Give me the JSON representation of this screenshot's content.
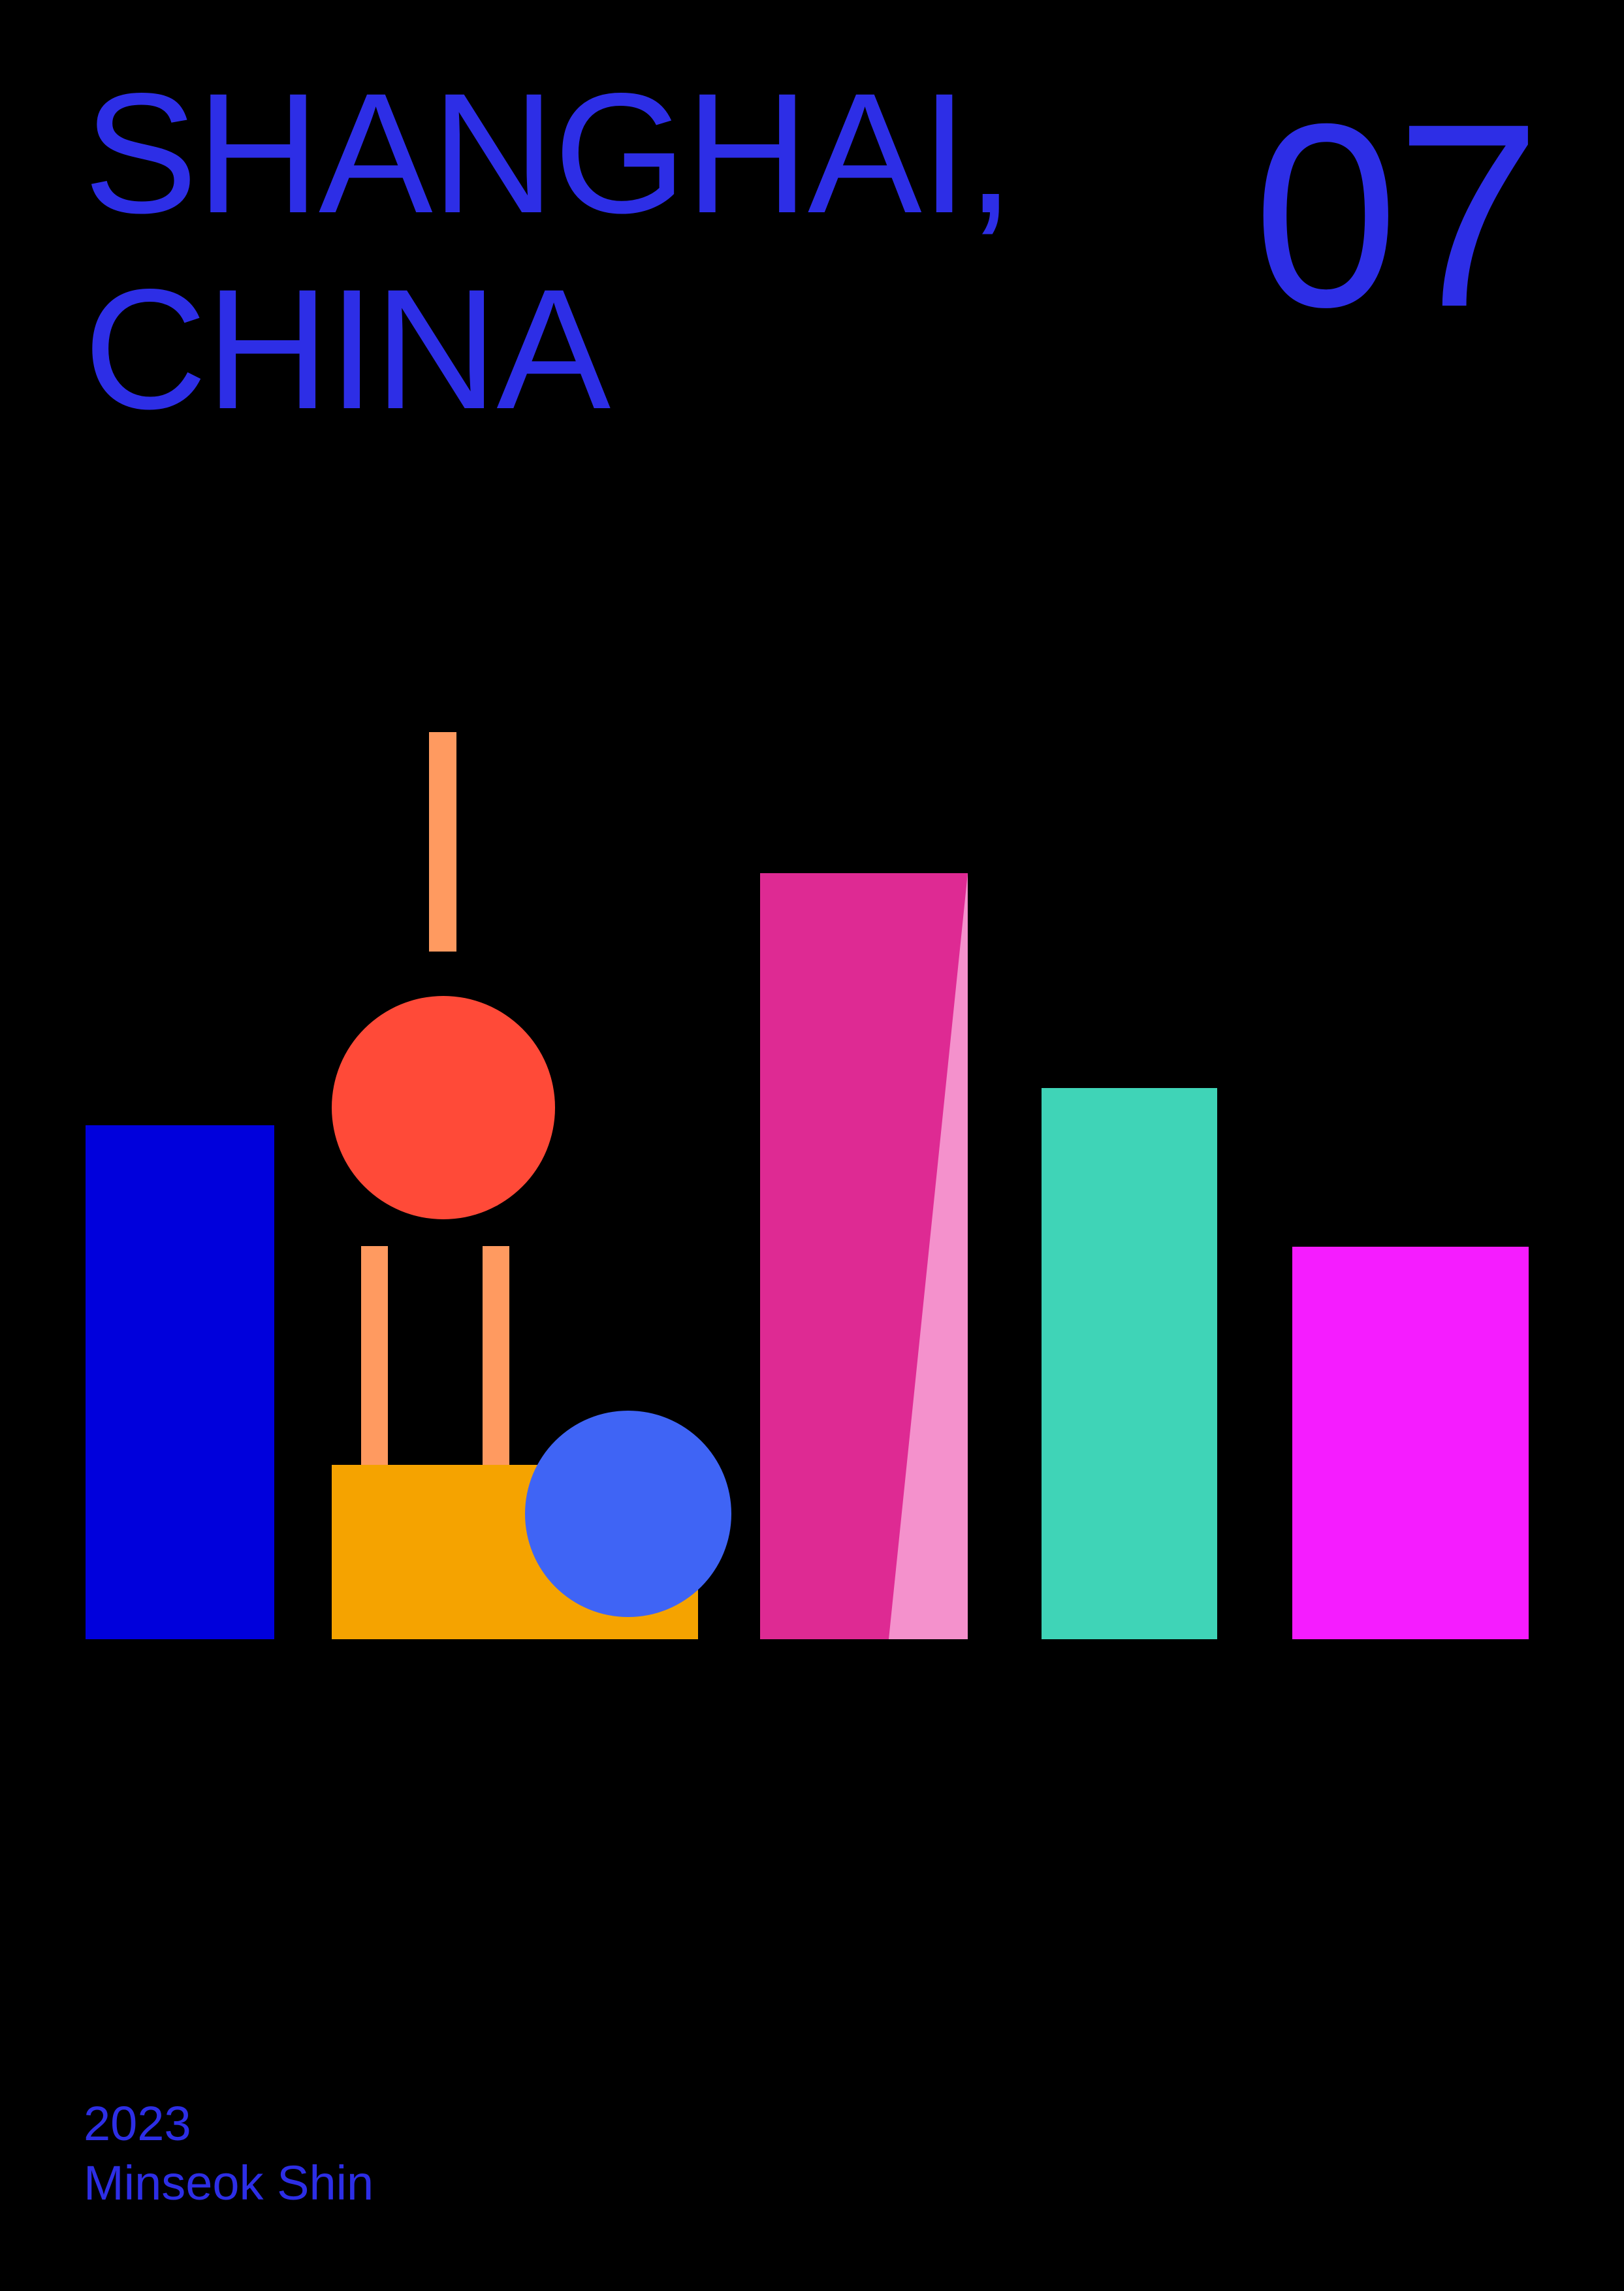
{
  "poster": {
    "title_line_1": "SHANGHAI,",
    "title_line_2": "CHINA",
    "issue_number": "07",
    "year": "2023",
    "author": "Minseok Shin"
  },
  "colors": {
    "background": "#000000",
    "text": "#2d2ee6",
    "blue_tower": "#0000dc",
    "pearl_spire": "#ff9a60",
    "pearl_sphere": "#ff4a38",
    "pearl_base": "#f5a300",
    "lower_sphere": "#3f64f5",
    "pink_tower": "#de2a93",
    "pink_tower_light": "#f491cc",
    "teal_tower": "#3fd4b7",
    "magenta_tower": "#f51cff"
  }
}
